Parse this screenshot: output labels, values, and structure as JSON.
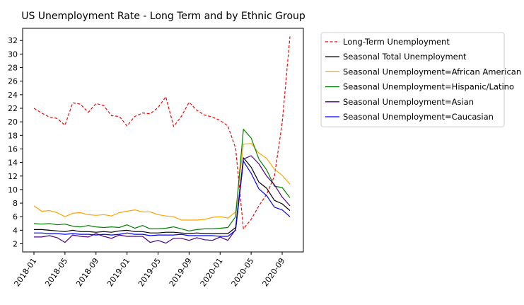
{
  "chart_data": {
    "type": "line",
    "title": "US Unemployment Rate - Long Term and by Ethnic Group",
    "xlabel": "",
    "ylabel": "",
    "x": [
      "2018-01",
      "2018-02",
      "2018-03",
      "2018-04",
      "2018-05",
      "2018-06",
      "2018-07",
      "2018-08",
      "2018-09",
      "2018-10",
      "2018-11",
      "2018-12",
      "2019-01",
      "2019-02",
      "2019-03",
      "2019-04",
      "2019-05",
      "2019-06",
      "2019-07",
      "2019-08",
      "2019-09",
      "2019-10",
      "2019-11",
      "2019-12",
      "2020-01",
      "2020-02",
      "2020-03",
      "2020-04",
      "2020-05",
      "2020-06",
      "2020-07",
      "2020-08",
      "2020-09",
      "2020-10"
    ],
    "xticks": [
      "2018-01",
      "2018-05",
      "2018-09",
      "2019-01",
      "2019-05",
      "2019-09",
      "2020-01",
      "2020-05",
      "2020-09"
    ],
    "yticks": [
      2,
      4,
      6,
      8,
      10,
      12,
      14,
      16,
      18,
      20,
      22,
      24,
      26,
      28,
      30,
      32
    ],
    "ylim": [
      0.8,
      33.8
    ],
    "grid": false,
    "legend_position": "outside-right",
    "series": [
      {
        "name": "Long-Term Unemployment",
        "color": "#ff0000",
        "dashed": true,
        "values": [
          22.0,
          21.3,
          20.7,
          20.5,
          19.5,
          22.8,
          22.6,
          21.4,
          22.7,
          22.4,
          20.9,
          20.8,
          19.4,
          20.8,
          21.3,
          21.2,
          22.1,
          23.7,
          19.3,
          20.8,
          22.9,
          21.7,
          21.0,
          20.7,
          20.2,
          19.4,
          16.1,
          4.2,
          5.6,
          7.6,
          9.3,
          12.0,
          19.8,
          32.6
        ]
      },
      {
        "name": "Seasonal Total Unemployment",
        "color": "#000000",
        "dashed": false,
        "values": [
          4.1,
          4.1,
          4.0,
          3.9,
          3.8,
          4.0,
          3.8,
          3.8,
          3.7,
          3.8,
          3.7,
          3.9,
          4.0,
          3.8,
          3.8,
          3.6,
          3.6,
          3.7,
          3.7,
          3.6,
          3.5,
          3.6,
          3.5,
          3.5,
          3.5,
          3.5,
          4.4,
          14.7,
          13.3,
          11.1,
          10.2,
          8.4,
          7.9,
          6.9
        ]
      },
      {
        "name": "Seasonal Unemployment=African American",
        "color": "#ffa500",
        "dashed": false,
        "values": [
          7.6,
          6.8,
          6.9,
          6.6,
          6.0,
          6.5,
          6.6,
          6.3,
          6.2,
          6.3,
          6.1,
          6.6,
          6.8,
          7.0,
          6.7,
          6.7,
          6.3,
          6.1,
          6.0,
          5.5,
          5.5,
          5.5,
          5.6,
          5.9,
          6.0,
          5.8,
          6.7,
          16.7,
          16.8,
          15.4,
          14.6,
          13.0,
          12.1,
          10.8
        ]
      },
      {
        "name": "Seasonal Unemployment=Hispanic/Latino",
        "color": "#008000",
        "dashed": false,
        "values": [
          5.0,
          4.9,
          5.0,
          4.8,
          4.9,
          4.6,
          4.5,
          4.7,
          4.5,
          4.4,
          4.5,
          4.4,
          4.8,
          4.3,
          4.7,
          4.2,
          4.2,
          4.3,
          4.5,
          4.2,
          3.9,
          4.1,
          4.2,
          4.2,
          4.3,
          4.4,
          6.0,
          18.9,
          17.6,
          14.5,
          12.9,
          10.5,
          10.3,
          8.8
        ]
      },
      {
        "name": "Seasonal Unemployment=Asian",
        "color": "#4b0082",
        "dashed": false,
        "values": [
          3.0,
          3.0,
          3.2,
          2.9,
          2.2,
          3.3,
          3.1,
          3.0,
          3.5,
          3.1,
          2.8,
          3.3,
          3.1,
          3.1,
          3.1,
          2.2,
          2.5,
          2.1,
          2.8,
          2.8,
          2.5,
          2.9,
          2.6,
          2.5,
          3.0,
          2.5,
          4.1,
          14.5,
          15.0,
          13.8,
          12.0,
          10.7,
          8.9,
          7.6
        ]
      },
      {
        "name": "Seasonal Unemployment=Caucasian",
        "color": "#0000ff",
        "dashed": false,
        "values": [
          3.6,
          3.6,
          3.5,
          3.5,
          3.4,
          3.5,
          3.4,
          3.4,
          3.3,
          3.4,
          3.3,
          3.4,
          3.6,
          3.4,
          3.4,
          3.2,
          3.3,
          3.3,
          3.3,
          3.4,
          3.2,
          3.2,
          3.2,
          3.2,
          3.1,
          3.1,
          4.0,
          14.2,
          12.4,
          10.1,
          9.1,
          7.4,
          7.0,
          6.0
        ]
      }
    ]
  }
}
